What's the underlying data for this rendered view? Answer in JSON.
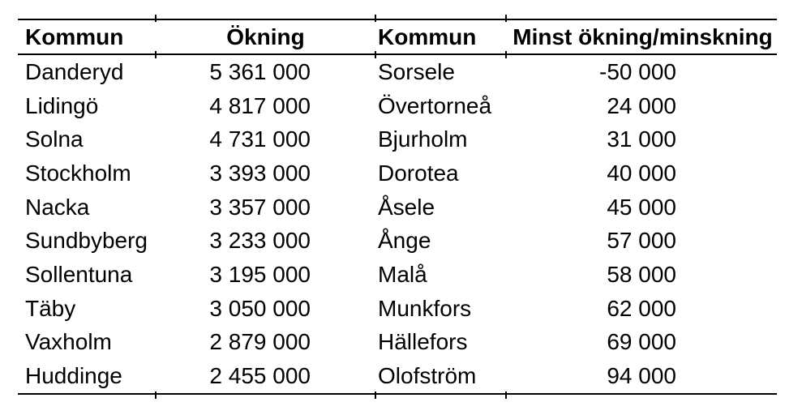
{
  "colors": {
    "background": "#ffffff",
    "text": "#000000",
    "rule_lines": "#000000"
  },
  "table": {
    "headers": [
      "Kommun",
      "Ökning",
      "Kommun",
      "Minst ökning/minskning"
    ],
    "rows": [
      [
        "Danderyd",
        "5 361 000",
        "Sorsele",
        "-50 000"
      ],
      [
        "Lidingö",
        "4 817 000",
        "Övertorneå",
        "24 000"
      ],
      [
        "Solna",
        "4 731 000",
        "Bjurholm",
        "31 000"
      ],
      [
        "Stockholm",
        "3 393 000",
        "Dorotea",
        "40 000"
      ],
      [
        "Nacka",
        "3 357 000",
        "Åsele",
        "45 000"
      ],
      [
        "Sundbyberg",
        "3 233 000",
        "Ånge",
        "57 000"
      ],
      [
        "Sollentuna",
        "3 195 000",
        "Malå",
        "58 000"
      ],
      [
        "Täby",
        "3 050 000",
        "Munkfors",
        "62 000"
      ],
      [
        "Vaxholm",
        "2 879 000",
        "Hällefors",
        "69 000"
      ],
      [
        "Huddinge",
        "2 455 000",
        "Olofström",
        "94 000"
      ]
    ]
  },
  "chart_data": {
    "type": "table",
    "columns": [
      "Kommun",
      "Ökning",
      "Kommun",
      "Minst ökning/minskning"
    ],
    "series": [
      {
        "name": "Ökning",
        "categories": [
          "Danderyd",
          "Lidingö",
          "Solna",
          "Stockholm",
          "Nacka",
          "Sundbyberg",
          "Sollentuna",
          "Täby",
          "Vaxholm",
          "Huddinge"
        ],
        "values": [
          5361000,
          4817000,
          4731000,
          3393000,
          3357000,
          3233000,
          3195000,
          3050000,
          2879000,
          2455000
        ]
      },
      {
        "name": "Minst ökning/minskning",
        "categories": [
          "Sorsele",
          "Övertorneå",
          "Bjurholm",
          "Dorotea",
          "Åsele",
          "Ånge",
          "Malå",
          "Munkfors",
          "Hällefors",
          "Olofström"
        ],
        "values": [
          -50000,
          24000,
          31000,
          40000,
          45000,
          57000,
          58000,
          62000,
          69000,
          94000
        ]
      }
    ]
  }
}
